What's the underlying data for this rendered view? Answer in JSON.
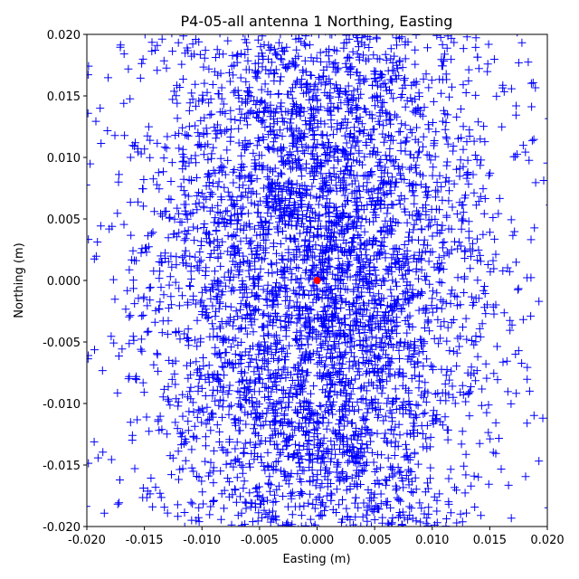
{
  "chart_data": {
    "type": "scatter",
    "title": "P4-05-all antenna 1 Northing, Easting",
    "xlabel": "Easting (m)",
    "ylabel": "Northing (m)",
    "xlim": [
      -0.02,
      0.02
    ],
    "ylim": [
      -0.02,
      0.02
    ],
    "xticks": [
      "-0.020",
      "-0.015",
      "-0.010",
      "-0.005",
      "0.000",
      "0.005",
      "0.010",
      "0.015",
      "0.020"
    ],
    "yticks": [
      "-0.020",
      "-0.015",
      "-0.010",
      "-0.005",
      "0.000",
      "0.005",
      "0.010",
      "0.015",
      "0.020"
    ],
    "grid": false,
    "series": [
      {
        "marker": "plus",
        "color": "#0000ff",
        "distribution": {
          "x_mean": 0.0,
          "y_mean": 0.0,
          "x_std": 0.0075,
          "y_std": 0.016
        }
      },
      {
        "marker": "circle",
        "color": "#ff0000",
        "points": [
          [
            0.0,
            0.0
          ]
        ]
      }
    ]
  }
}
